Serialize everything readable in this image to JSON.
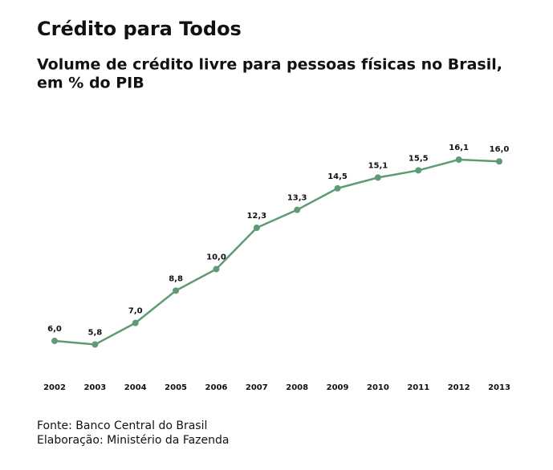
{
  "chart_data": {
    "type": "line",
    "title": "Crédito para Todos",
    "subtitle": [
      "Volume de crédito livre para pessoas físicas no Brasil,",
      "em % do PIB"
    ],
    "categories": [
      "2002",
      "2003",
      "2004",
      "2005",
      "2006",
      "2007",
      "2008",
      "2009",
      "2010",
      "2011",
      "2012",
      "2013"
    ],
    "values": [
      6.0,
      5.8,
      7.0,
      8.8,
      10.0,
      12.3,
      13.3,
      14.5,
      15.1,
      15.5,
      16.1,
      16.0
    ],
    "value_labels": [
      "6,0",
      "5,8",
      "7,0",
      "8,8",
      "10,0",
      "12,3",
      "13,3",
      "14,5",
      "15,1",
      "15,5",
      "16,1",
      "16,0"
    ],
    "color": "#5e9b74",
    "source": [
      "Fonte: Banco Central do Brasil",
      "Elaboração: Ministério da Fazenda"
    ]
  }
}
